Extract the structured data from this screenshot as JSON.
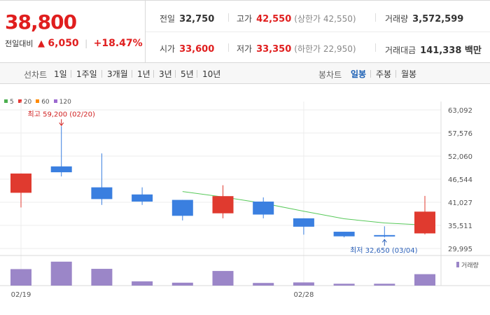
{
  "quote": {
    "price": "38,800",
    "change_label": "전일대비",
    "change_symbol": "▲",
    "change_value": "6,050",
    "change_pct": "+18.47%"
  },
  "stats": {
    "prev_close": {
      "label": "전일",
      "value": "32,750"
    },
    "high": {
      "label": "고가",
      "value": "42,550",
      "sub": "(상한가 42,550)"
    },
    "volume": {
      "label": "거래량",
      "value": "3,572,599"
    },
    "open": {
      "label": "시가",
      "value": "33,600"
    },
    "low": {
      "label": "저가",
      "value": "33,350",
      "sub": "(하한가 22,950)"
    },
    "amount": {
      "label": "거래대금",
      "value": "141,338 백만"
    }
  },
  "line_chart_tabs": {
    "label": "선차트",
    "items": [
      "1일",
      "1주일",
      "3개월",
      "1년",
      "3년",
      "5년",
      "10년"
    ]
  },
  "candle_chart_tabs": {
    "label": "봉차트",
    "items": [
      "일봉",
      "주봉",
      "월봉"
    ],
    "active": "일봉"
  },
  "chart_data": {
    "type": "candlestick",
    "legend": [
      {
        "name": "5",
        "color": "#4caf50"
      },
      {
        "name": "20",
        "color": "#e53935"
      },
      {
        "name": "60",
        "color": "#ff8a00"
      },
      {
        "name": "120",
        "color": "#9c6ad0"
      }
    ],
    "y_ticks": [
      "63,092",
      "57,576",
      "52,060",
      "46,544",
      "41,027",
      "35,511",
      "29,995"
    ],
    "y_range": [
      29995,
      63092
    ],
    "x_labels": [
      {
        "index": 0,
        "text": "02/19"
      },
      {
        "index": 7,
        "text": "02/28"
      }
    ],
    "candles": [
      {
        "open": 43300,
        "close": 47900,
        "high": 47900,
        "low": 39800
      },
      {
        "open": 49600,
        "close": 48200,
        "high": 59200,
        "low": 47200
      },
      {
        "open": 44600,
        "close": 41800,
        "high": 52700,
        "low": 40400
      },
      {
        "open": 42900,
        "close": 41200,
        "high": 44600,
        "low": 40400
      },
      {
        "open": 41600,
        "close": 37800,
        "high": 41600,
        "low": 36700
      },
      {
        "open": 38400,
        "close": 42500,
        "high": 45100,
        "low": 37200
      },
      {
        "open": 41200,
        "close": 38100,
        "high": 42200,
        "low": 37200
      },
      {
        "open": 37200,
        "close": 35200,
        "high": 37200,
        "low": 33300
      },
      {
        "open": 34000,
        "close": 32900,
        "high": 34000,
        "low": 32650
      },
      {
        "open": 33200,
        "close": 32900,
        "high": 35300,
        "low": 32650
      },
      {
        "open": 33600,
        "close": 38800,
        "high": 42550,
        "low": 33350
      }
    ],
    "ma5": [
      {
        "index": 4,
        "value": 43600
      },
      {
        "index": 5,
        "value": 42300
      },
      {
        "index": 6,
        "value": 40800
      },
      {
        "index": 7,
        "value": 38900
      },
      {
        "index": 8,
        "value": 37100
      },
      {
        "index": 9,
        "value": 36100
      },
      {
        "index": 10,
        "value": 35600
      }
    ],
    "volumes": [
      0.62,
      0.9,
      0.63,
      0.16,
      0.11,
      0.55,
      0.1,
      0.12,
      0.07,
      0.07,
      0.43
    ],
    "annotations": {
      "high": "최고 59,200 (02/20)",
      "low": "최저 32,650 (03/04)"
    },
    "volume_label": "거래량"
  }
}
